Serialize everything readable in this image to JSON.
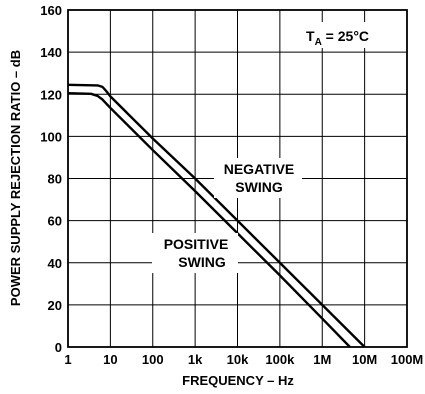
{
  "chart_data": {
    "type": "line",
    "xlabel": "FREQUENCY – Hz",
    "ylabel": "POWER SUPPLY REJECTION RATIO – dB",
    "x_scale": "log",
    "xlim": [
      1,
      100000000
    ],
    "ylim": [
      0,
      160
    ],
    "grid": true,
    "x_ticks": [
      {
        "value": 1,
        "label": "1"
      },
      {
        "value": 10,
        "label": "10"
      },
      {
        "value": 100,
        "label": "100"
      },
      {
        "value": 1000,
        "label": "1k"
      },
      {
        "value": 10000,
        "label": "10k"
      },
      {
        "value": 100000,
        "label": "100k"
      },
      {
        "value": 1000000,
        "label": "1M"
      },
      {
        "value": 10000000,
        "label": "10M"
      },
      {
        "value": 100000000,
        "label": "100M"
      }
    ],
    "y_ticks": [
      {
        "value": 0,
        "label": "0"
      },
      {
        "value": 20,
        "label": "20"
      },
      {
        "value": 40,
        "label": "40"
      },
      {
        "value": 60,
        "label": "60"
      },
      {
        "value": 80,
        "label": "80"
      },
      {
        "value": 100,
        "label": "100"
      },
      {
        "value": 120,
        "label": "120"
      },
      {
        "value": 140,
        "label": "140"
      },
      {
        "value": 160,
        "label": "160"
      }
    ],
    "annotations": {
      "temperature": {
        "prefix": "T",
        "subscript": "A",
        "suffix": " = 25°C"
      }
    },
    "series": [
      {
        "name": "NEGATIVE SWING",
        "name_lines": [
          "NEGATIVE",
          "SWING"
        ],
        "x": [
          1,
          5,
          6.5,
          8,
          10,
          100,
          1000,
          10000,
          100000,
          1000000,
          10000000
        ],
        "y": [
          124.5,
          124.2,
          123.5,
          121.5,
          119,
          99,
          80,
          60,
          40,
          20,
          0
        ]
      },
      {
        "name": "POSITIVE SWING",
        "name_lines": [
          "POSITIVE",
          "SWING"
        ],
        "x": [
          1,
          3.5,
          5,
          6.5,
          10,
          100,
          1000,
          10000,
          100000,
          1000000,
          4500000
        ],
        "y": [
          120.5,
          120.2,
          119.2,
          117.5,
          113.5,
          93.5,
          74,
          54,
          34,
          13.5,
          0
        ]
      }
    ]
  }
}
